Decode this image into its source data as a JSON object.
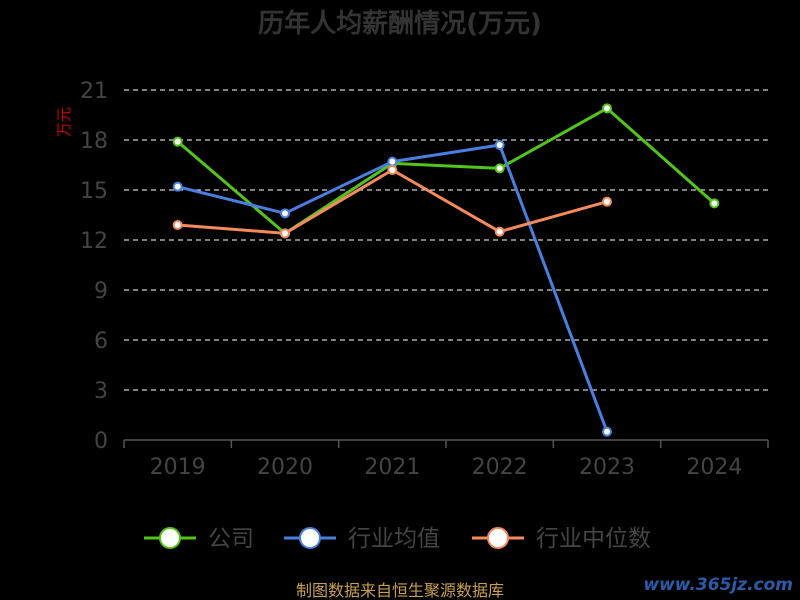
{
  "chart_data": {
    "type": "line",
    "title": "历年人均薪酬情况(万元)",
    "ylabel": "万元",
    "categories": [
      "2019",
      "2020",
      "2021",
      "2022",
      "2023",
      "2024"
    ],
    "ylim": [
      0,
      21
    ],
    "yticks": [
      0,
      3,
      6,
      9,
      12,
      15,
      18,
      21
    ],
    "grid": true,
    "legend_position": "bottom",
    "series": [
      {
        "name": "公司",
        "color": "#52c41a",
        "values": [
          17.9,
          12.4,
          16.6,
          16.3,
          19.9,
          14.2
        ]
      },
      {
        "name": "行业均值",
        "color": "#4a7fe0",
        "values": [
          15.2,
          13.6,
          16.7,
          17.7,
          0.5,
          null
        ]
      },
      {
        "name": "行业中位数",
        "color": "#f58a5c",
        "values": [
          12.9,
          12.4,
          16.2,
          12.5,
          14.3,
          null
        ]
      }
    ]
  },
  "footer": {
    "source": "制图数据来自恒生聚源数据库",
    "watermark": "www.365jz.com"
  }
}
